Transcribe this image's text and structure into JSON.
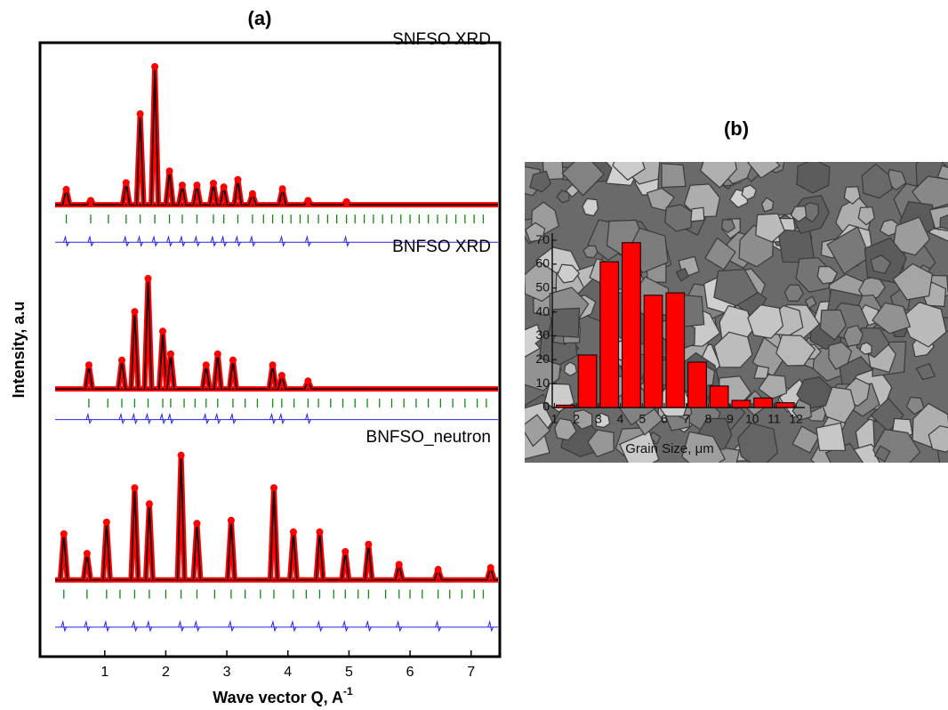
{
  "chart_data": [
    {
      "type": "line",
      "title": "(a)",
      "x_label": "Wave vector Q, A",
      "x_label_sup": "-1",
      "y_label": "Intensity, a.u",
      "xlim": [
        -0.06,
        7.47
      ],
      "ylim": [
        0,
        100
      ],
      "xticks": [
        1,
        2,
        3,
        4,
        5,
        6,
        7
      ],
      "observed_color": "#ff0000",
      "calculated_color": "#000000",
      "difference_color": "#2222ee",
      "reflection_color": "#118811",
      "patterns": [
        {
          "label": "SNFSO XRD",
          "baseline": 73.6,
          "difference_level": 67.5,
          "x": [
            0.37,
            0.77,
            1.35,
            1.58,
            1.82,
            2.06,
            2.27,
            2.51,
            2.78,
            2.95,
            3.18,
            3.42,
            3.91,
            4.33,
            4.96
          ],
          "values": [
            76.1,
            74.3,
            77.2,
            88.4,
            96.1,
            79.1,
            76.8,
            76.8,
            77.1,
            76.5,
            77.7,
            75.4,
            76.2,
            74.3,
            74.1
          ],
          "reflections": [
            0.37,
            0.77,
            1.06,
            1.35,
            1.58,
            1.82,
            2.06,
            2.27,
            2.51,
            2.78,
            2.95,
            3.18,
            3.42,
            3.6,
            3.75,
            3.91,
            4.05,
            4.2,
            4.33,
            4.5,
            4.65,
            4.8,
            4.96,
            5.1,
            5.25,
            5.4,
            5.55,
            5.7,
            5.85,
            6.0,
            6.15,
            6.3,
            6.45,
            6.6,
            6.75,
            6.9,
            7.05,
            7.2
          ]
        },
        {
          "label": "BNFSO XRD",
          "baseline": 43.6,
          "difference_level": 38.6,
          "x": [
            0.74,
            1.28,
            1.49,
            1.71,
            1.95,
            2.08,
            2.66,
            2.85,
            3.1,
            3.75,
            3.9,
            4.33
          ],
          "values": [
            47.5,
            48.3,
            56.2,
            61.6,
            53.0,
            49.3,
            47.5,
            49.3,
            48.3,
            47.5,
            45.8,
            44.9
          ],
          "reflections": [
            0.74,
            1.05,
            1.28,
            1.49,
            1.71,
            1.95,
            2.08,
            2.3,
            2.48,
            2.66,
            2.85,
            3.1,
            3.3,
            3.5,
            3.75,
            3.9,
            4.1,
            4.33,
            4.5,
            4.7,
            4.9,
            5.1,
            5.3,
            5.5,
            5.7,
            5.9,
            6.1,
            6.3,
            6.5,
            6.7,
            6.9,
            7.1,
            7.25
          ]
        },
        {
          "label": "BNFSO_neutron",
          "baseline": 12.5,
          "difference_level": 4.8,
          "x": [
            0.33,
            0.71,
            1.03,
            1.49,
            1.73,
            2.25,
            2.51,
            3.07,
            3.77,
            4.09,
            4.52,
            4.94,
            5.32,
            5.82,
            6.46,
            7.32
          ],
          "values": [
            20.0,
            16.8,
            21.9,
            27.5,
            24.9,
            32.8,
            21.7,
            22.2,
            27.5,
            20.3,
            20.3,
            17.1,
            18.3,
            15.0,
            14.2,
            14.5
          ],
          "reflections": [
            0.33,
            0.71,
            1.03,
            1.25,
            1.49,
            1.73,
            2.0,
            2.25,
            2.51,
            2.8,
            3.07,
            3.3,
            3.55,
            3.77,
            4.09,
            4.3,
            4.52,
            4.75,
            4.94,
            5.15,
            5.32,
            5.6,
            5.82,
            6.0,
            6.2,
            6.46,
            6.65,
            6.85,
            7.05,
            7.2
          ]
        }
      ]
    },
    {
      "type": "histogram",
      "title": "(b)",
      "x_label": "Grain Size, μm",
      "bins": [
        1,
        2,
        3,
        4,
        5,
        6,
        7,
        8,
        9,
        10,
        11,
        12
      ],
      "values": [
        1,
        22,
        61,
        69,
        47,
        48,
        19,
        9,
        3,
        4,
        2
      ],
      "color": "#ff0000",
      "xlim": [
        0.9,
        12.4
      ],
      "ylim": [
        0,
        73
      ],
      "xticks": [
        1,
        2,
        3,
        4,
        5,
        6,
        7,
        8,
        9,
        10,
        11,
        12
      ],
      "yticks": [
        0,
        10,
        20,
        30,
        40,
        50,
        60,
        70
      ]
    }
  ]
}
